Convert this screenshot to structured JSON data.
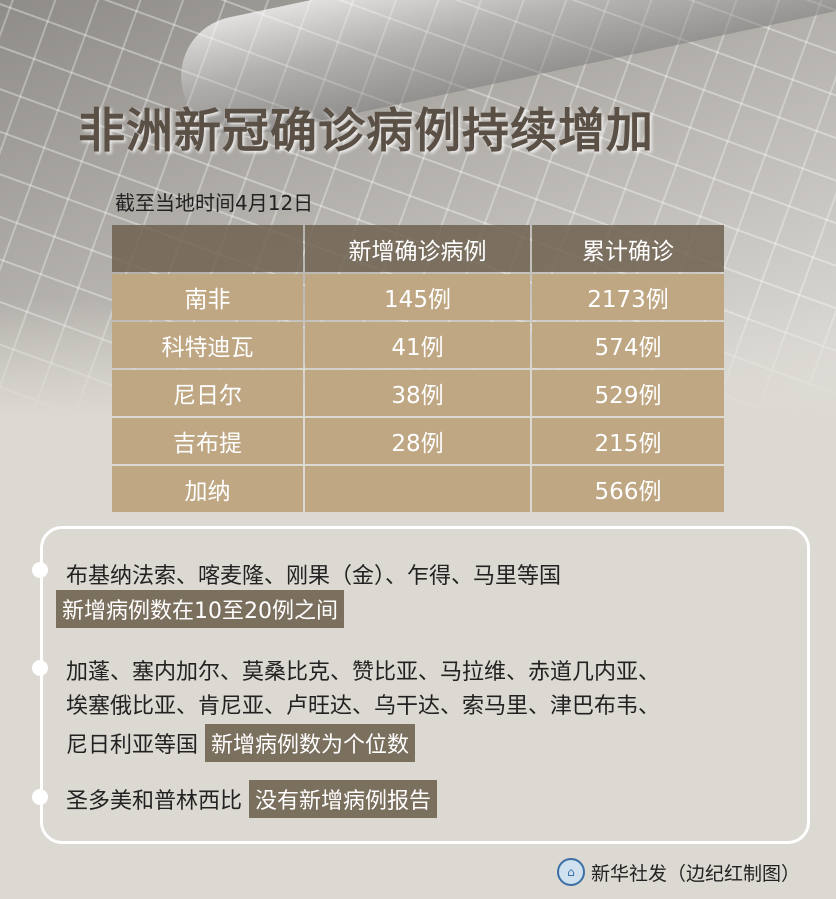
{
  "title": "非洲新冠确诊病例持续增加",
  "subtitle": "截至当地时间4月12日",
  "table": {
    "headers": [
      "",
      "新增确诊病例",
      "累计确诊"
    ],
    "rows": [
      [
        "南非",
        "145例",
        "2173例"
      ],
      [
        "科特迪瓦",
        "41例",
        "574例"
      ],
      [
        "尼日尔",
        "38例",
        "529例"
      ],
      [
        "吉布提",
        "28例",
        "215例"
      ],
      [
        "加纳",
        "",
        "566例"
      ]
    ]
  },
  "notes": {
    "n1_countries": "布基纳法索、喀麦隆、刚果（金）、乍得、马里等国",
    "n1_highlight": "新增病例数在10至20例之间",
    "n2_line1": "加蓬、塞内加尔、莫桑比克、赞比亚、马拉维、赤道几内亚、",
    "n2_line2": "埃塞俄比亚、肯尼亚、卢旺达、乌干达、索马里、津巴布韦、",
    "n2_line3": "尼日利亚等国",
    "n2_highlight": "新增病例数为个位数",
    "n3_countries": "圣多美和普林西比",
    "n3_highlight": "没有新增病例报告"
  },
  "credit": "新华社发（边纪红制图）",
  "logo_text": "新华社",
  "colors": {
    "row": "#bfa784",
    "header": "#6e6150",
    "highlight": "#7b6f5e"
  }
}
